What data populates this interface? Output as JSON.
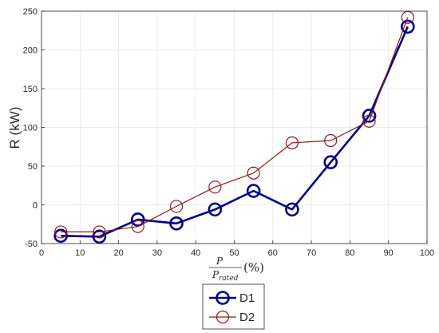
{
  "chart_data": {
    "type": "line",
    "ylabel": "R (kW)",
    "xlabel": {
      "numerator": "P",
      "denominator": "P",
      "denominator_subscript": "rated",
      "unit": "(%)"
    },
    "xlim": [
      0,
      100
    ],
    "ylim": [
      -50,
      250
    ],
    "xticks": [
      0,
      10,
      20,
      30,
      40,
      50,
      60,
      70,
      80,
      90,
      100
    ],
    "yticks": [
      -50,
      0,
      50,
      100,
      150,
      200,
      250
    ],
    "grid": true,
    "legend_position": "bottom-center outside",
    "x": [
      5,
      15,
      25,
      35,
      45,
      55,
      65,
      75,
      85,
      95
    ],
    "series": [
      {
        "name": "D1",
        "color": "#00008B",
        "values": [
          -40,
          -41,
          -19,
          -24,
          -6,
          18,
          -6,
          55,
          115,
          230
        ]
      },
      {
        "name": "D2",
        "color": "#8B1A1A",
        "values": [
          -35,
          -35,
          -28,
          -2,
          23,
          41,
          80,
          83,
          108,
          242
        ]
      }
    ]
  }
}
